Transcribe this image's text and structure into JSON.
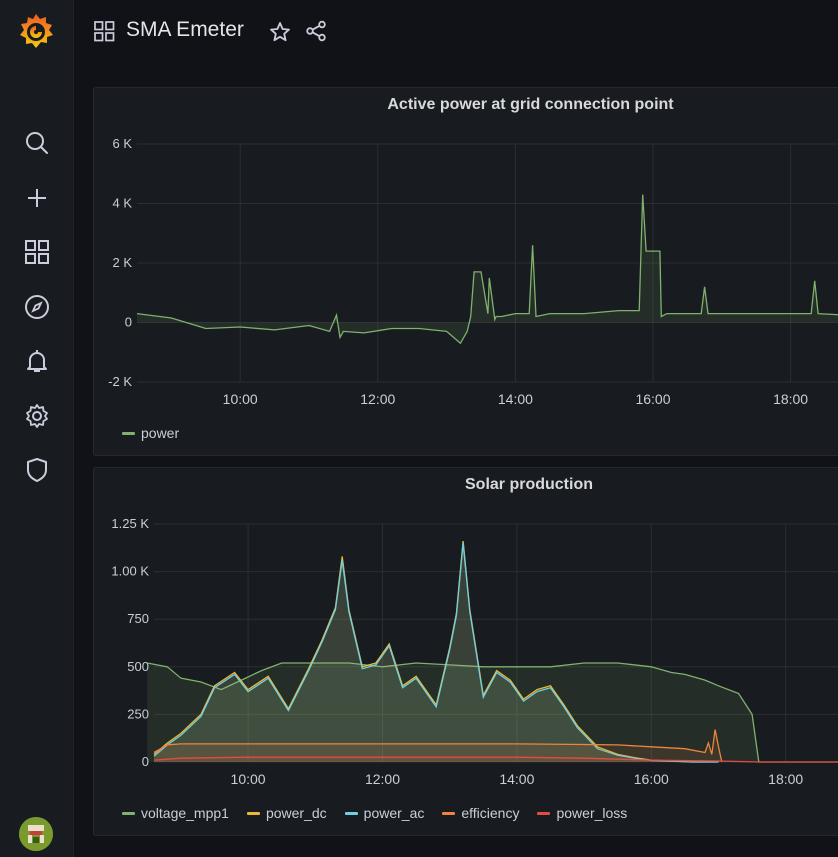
{
  "dashboard": {
    "title": "SMA Emeter"
  },
  "sidebar": {
    "items": [
      {
        "name": "search-icon"
      },
      {
        "name": "plus-icon"
      },
      {
        "name": "dashboards-icon"
      },
      {
        "name": "explore-compass-icon"
      },
      {
        "name": "alerting-bell-icon"
      },
      {
        "name": "gear-icon"
      },
      {
        "name": "shield-icon"
      }
    ]
  },
  "colors": {
    "green": "#73bf69",
    "yellow": "#f2cc0c",
    "cyan": "#8ab8ff",
    "orange": "#ff9830",
    "red": "#f2495c",
    "grafana_orange": "#f05a28"
  },
  "panels": [
    {
      "title": "Active power at grid connection point",
      "legend": [
        {
          "name": "power",
          "color": "#7eb26d"
        }
      ],
      "chart_data": {
        "type": "line",
        "x_ticks": [
          "10:00",
          "12:00",
          "14:00",
          "16:00",
          "18:00"
        ],
        "y_ticks": [
          "6 K",
          "4 K",
          "2 K",
          "0",
          "-2 K"
        ],
        "ylim": [
          -2000,
          6000
        ],
        "series": [
          {
            "name": "power",
            "x": [
              8.5,
              9.0,
              9.5,
              10.0,
              10.5,
              11.0,
              11.3,
              11.4,
              11.45,
              11.5,
              11.8,
              12.2,
              12.6,
              13.0,
              13.2,
              13.3,
              13.35,
              13.4,
              13.5,
              13.6,
              13.62,
              13.7,
              13.72,
              13.8,
              14.0,
              14.2,
              14.25,
              14.3,
              14.5,
              15.0,
              15.5,
              15.8,
              15.85,
              15.9,
              15.95,
              16.1,
              16.12,
              16.2,
              16.5,
              16.7,
              16.75,
              16.8,
              17.0,
              17.5,
              18.0,
              18.3,
              18.35,
              18.4,
              18.8
            ],
            "y": [
              300,
              150,
              -200,
              -150,
              -250,
              -100,
              -300,
              250,
              -500,
              -300,
              -350,
              -200,
              -200,
              -300,
              -700,
              -300,
              200,
              1700,
              1700,
              300,
              1500,
              100,
              200,
              200,
              300,
              300,
              2600,
              200,
              300,
              300,
              400,
              400,
              4300,
              2400,
              2400,
              2400,
              200,
              300,
              300,
              300,
              1200,
              300,
              300,
              300,
              300,
              300,
              1400,
              300,
              250
            ]
          }
        ]
      }
    },
    {
      "title": "Solar production",
      "legend": [
        {
          "name": "voltage_mpp1",
          "color": "#7eb26d"
        },
        {
          "name": "power_dc",
          "color": "#eab839"
        },
        {
          "name": "power_ac",
          "color": "#6ed0e0"
        },
        {
          "name": "efficiency",
          "color": "#ef843c"
        },
        {
          "name": "power_loss",
          "color": "#e24d42"
        }
      ],
      "chart_data": {
        "type": "area",
        "x_ticks": [
          "10:00",
          "12:00",
          "14:00",
          "16:00",
          "18:00"
        ],
        "y_ticks": [
          "1.25 K",
          "1.00 K",
          "750",
          "500",
          "250",
          "0"
        ],
        "ylim": [
          0,
          1250
        ],
        "series": [
          {
            "name": "voltage_mpp1",
            "x": [
              8.5,
              8.8,
              9.0,
              9.3,
              9.6,
              9.9,
              10.2,
              10.5,
              11.0,
              11.5,
              12.0,
              12.5,
              13.0,
              13.5,
              14.0,
              14.5,
              15.0,
              15.5,
              16.0,
              16.3,
              16.5,
              16.8,
              17.0,
              17.3,
              17.5,
              17.6,
              17.8,
              18.8
            ],
            "y": [
              520,
              500,
              440,
              420,
              380,
              430,
              480,
              520,
              520,
              520,
              500,
              520,
              510,
              500,
              500,
              500,
              520,
              520,
              500,
              470,
              460,
              430,
              400,
              360,
              250,
              0,
              0,
              0
            ]
          },
          {
            "name": "power_dc",
            "x": [
              8.6,
              8.8,
              9.0,
              9.3,
              9.5,
              9.8,
              10.0,
              10.3,
              10.6,
              10.9,
              11.1,
              11.3,
              11.4,
              11.5,
              11.7,
              11.9,
              12.1,
              12.3,
              12.5,
              12.8,
              13.0,
              13.1,
              13.2,
              13.3,
              13.5,
              13.7,
              13.9,
              14.1,
              14.3,
              14.5,
              14.7,
              14.9,
              15.2,
              15.5,
              15.8,
              16.0,
              16.3,
              16.6,
              16.9,
              17.0
            ],
            "y": [
              40,
              100,
              150,
              250,
              400,
              470,
              380,
              450,
              280,
              490,
              640,
              810,
              1080,
              800,
              500,
              520,
              620,
              400,
              450,
              300,
              600,
              780,
              1160,
              800,
              350,
              480,
              430,
              330,
              380,
              400,
              300,
              190,
              80,
              40,
              20,
              10,
              5,
              0,
              0,
              0
            ]
          },
          {
            "name": "power_ac",
            "x": [
              8.6,
              8.8,
              9.0,
              9.3,
              9.5,
              9.8,
              10.0,
              10.3,
              10.6,
              10.9,
              11.1,
              11.3,
              11.4,
              11.5,
              11.7,
              11.9,
              12.1,
              12.3,
              12.5,
              12.8,
              13.0,
              13.1,
              13.2,
              13.3,
              13.5,
              13.7,
              13.9,
              14.1,
              14.3,
              14.5,
              14.7,
              14.9,
              15.2,
              15.5,
              15.8,
              16.0,
              16.3,
              16.6,
              16.9,
              17.0
            ],
            "y": [
              30,
              90,
              140,
              240,
              390,
              460,
              370,
              440,
              270,
              480,
              630,
              800,
              1060,
              790,
              490,
              510,
              610,
              390,
              440,
              290,
              590,
              770,
              1150,
              790,
              340,
              470,
              420,
              320,
              370,
              390,
              290,
              180,
              70,
              35,
              18,
              8,
              4,
              0,
              0,
              0
            ]
          },
          {
            "name": "efficiency",
            "x": [
              8.6,
              8.8,
              9.0,
              10.0,
              12.0,
              14.0,
              15.0,
              15.5,
              16.0,
              16.5,
              16.8,
              16.85,
              16.9,
              16.95,
              17.0,
              17.05
            ],
            "y": [
              50,
              90,
              95,
              95,
              95,
              95,
              92,
              90,
              80,
              70,
              50,
              100,
              40,
              170,
              80,
              0
            ]
          },
          {
            "name": "power_loss",
            "x": [
              8.6,
              9.0,
              10.0,
              12.0,
              14.0,
              15.0,
              16.0,
              17.0,
              17.6,
              18.8
            ],
            "y": [
              10,
              20,
              25,
              25,
              25,
              20,
              10,
              5,
              0,
              0
            ]
          }
        ]
      }
    }
  ]
}
